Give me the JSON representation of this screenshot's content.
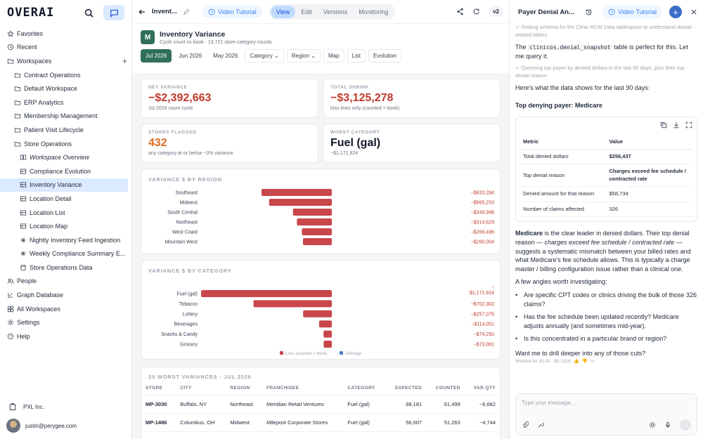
{
  "sidebar": {
    "logo": "OVERAI",
    "items": [
      {
        "label": "Favorites",
        "icon": "star-icon"
      },
      {
        "label": "Recent",
        "icon": "clock-icon"
      },
      {
        "label": "Workspaces",
        "icon": "folder-icon"
      },
      {
        "label": "Contract Operations",
        "icon": "folder-icon"
      },
      {
        "label": "Default Workspace",
        "icon": "folder-icon"
      },
      {
        "label": "ERP Analytics",
        "icon": "folder-icon"
      },
      {
        "label": "Membership Management",
        "icon": "folder-icon"
      },
      {
        "label": "Patient Visit Lifecycle",
        "icon": "folder-icon"
      },
      {
        "label": "Store Operations",
        "icon": "folder-icon"
      },
      {
        "label": "Workspace Overview",
        "icon": "book-icon"
      },
      {
        "label": "Compliance Evolution",
        "icon": "table-icon"
      },
      {
        "label": "Inventory Variance",
        "icon": "table-icon"
      },
      {
        "label": "Location Detail",
        "icon": "table-icon"
      },
      {
        "label": "Location List",
        "icon": "table-icon"
      },
      {
        "label": "Location Map",
        "icon": "table-icon"
      },
      {
        "label": "Nightly Inventory Feed Ingestion",
        "icon": "workflow-icon"
      },
      {
        "label": "Weekly Compliance Summary E...",
        "icon": "workflow-icon"
      },
      {
        "label": "Store Operations Data",
        "icon": "database-icon"
      },
      {
        "label": "People",
        "icon": "people-icon"
      },
      {
        "label": "Graph Database",
        "icon": "graph-icon"
      },
      {
        "label": "All Workspaces",
        "icon": "grid-icon"
      },
      {
        "label": "Settings",
        "icon": "gear-icon"
      },
      {
        "label": "Help",
        "icon": "help-icon"
      }
    ],
    "org": "PXL Inc.",
    "user": "justin@perygee.com"
  },
  "main": {
    "title": "Invent...",
    "video_tutorial": "Video Tutorial",
    "tabs": [
      "View",
      "Edit",
      "Versions",
      "Monitoring"
    ],
    "version": "v2",
    "report": {
      "badge": "M",
      "title": "Inventory Variance",
      "subtitle": "Cycle count vs book · 13,721 store-category counts"
    },
    "filters": {
      "months": [
        "Jul 2026",
        "Jun 2026",
        "May 2026"
      ],
      "category": "Category",
      "region": "Region",
      "views": [
        "Map",
        "List",
        "Evolution"
      ]
    },
    "kpis": [
      {
        "label": "NET VARIANCE",
        "value": "−$2,392,663",
        "sub": "Jul 2026 count cycle",
        "color": "#c0392b"
      },
      {
        "label": "TOTAL SHRINK",
        "value": "−$3,125,278",
        "sub": "loss lines only (counted < book)",
        "color": "#c0392b"
      },
      {
        "label": "STORES FLAGGED",
        "value": "432",
        "sub": "any category at or below −3% variance",
        "color": "#dd6b20"
      },
      {
        "label": "WORST CATEGORY",
        "value": "Fuel (gal)",
        "sub": "−$1,171,924",
        "color": "#111827"
      }
    ],
    "region_title": "VARIANCE $ BY REGION",
    "category_title": "VARIANCE $ BY CATEGORY",
    "legend": {
      "loss": "Loss (counted < book)",
      "overage": "Overage"
    },
    "worst": {
      "title": "20 WORST VARIANCES · JUL 2026",
      "headers": [
        "STORE",
        "CITY",
        "REGION",
        "FRANCHISEE",
        "CATEGORY",
        "EXPECTED",
        "COUNTED",
        "VAR QTY"
      ],
      "rows": [
        [
          "MP-3030",
          "Buffalo, NY",
          "Northeast",
          "Meridian Retail Ventures",
          "Fuel (gal)",
          "68,181",
          "61,499",
          "−6,682"
        ],
        [
          "MP-1486",
          "Columbus, OH",
          "Midwest",
          "Milepost Corporate Stores",
          "Fuel (gal)",
          "56,007",
          "51,263",
          "−4,744"
        ]
      ]
    }
  },
  "chart_data": [
    {
      "type": "bar",
      "orientation": "horizontal",
      "title": "VARIANCE $ BY REGION",
      "categories": [
        "Southeast",
        "Midwest",
        "South Central",
        "Northeast",
        "West Coast",
        "Mountain West"
      ],
      "values": [
        -633284,
        -565253,
        -349998,
        -314629,
        -269496,
        -260004
      ],
      "labels": [
        "−$633,284",
        "−$565,253",
        "−$349,998",
        "−$314,629",
        "−$269,496",
        "−$260,004"
      ],
      "colors": {
        "loss": "#c9464a",
        "overage": "#4a7fc1"
      }
    },
    {
      "type": "bar",
      "orientation": "horizontal",
      "title": "VARIANCE $ BY CATEGORY",
      "categories": [
        "Fuel (gal)",
        "Tobacco",
        "Lottery",
        "Beverages",
        "Snacks & Candy",
        "Grocery"
      ],
      "values": [
        -1171924,
        -702302,
        -257075,
        -114051,
        -74250,
        -73061
      ],
      "labels": [
        "−$1,171,924",
        "−$702,302",
        "−$257,075",
        "−$114,051",
        "−$74,250",
        "−$73,061"
      ],
      "legend": [
        "Loss (counted < book)",
        "Overage"
      ],
      "colors": {
        "loss": "#c9464a",
        "overage": "#4a7fc1"
      }
    }
  ],
  "chat": {
    "title": "Payer Denial An...",
    "video_tutorial": "Video Tutorial",
    "step1": "✓ Getting schema for the Clinic RCM Data tablespace to understand denial-related tables",
    "msg1_pre": "The",
    "msg1_code": "clinicos.denial_snapshot",
    "msg1_post": "table is perfect for this. Let me query it.",
    "step2": "✓ Querying top payer by denied dollars in the last 90 days, plus their top denial reason",
    "msg2": "Here's what the data shows for the last 90 days:",
    "heading": "Top denying payer: Medicare",
    "table": {
      "headers": [
        "Metric",
        "Value"
      ],
      "rows": [
        [
          "Total denied dollars",
          "$256,437"
        ],
        [
          "Top denial reason",
          "Charges exceed fee schedule / contracted rate"
        ],
        [
          "Denied amount for that reason",
          "$58,734"
        ],
        [
          "Number of claims affected",
          "326"
        ]
      ]
    },
    "analysis_bold": "Medicare",
    "analysis_a": " is the clear leader in denied dollars. Their top denial reason — ",
    "analysis_italic": "charges exceed fee schedule / contracted rate",
    "analysis_b": " — suggests a systematic mismatch between your billed rates and what Medicare's fee schedule allows. This is typically a charge master / billing configuration issue rather than a clinical one.",
    "angles": "A few angles worth investigating:",
    "bullets": [
      "Are specific CPT codes or clinics driving the bulk of those 326 claims?",
      "Has the fee schedule been updated recently? Medicare adjusts annually (and sometimes mid-year).",
      "Is this concentrated in a particular brand or region?"
    ],
    "closing": "Want me to drill deeper into any of those cuts?",
    "meta": "Worked for 25.0s · $0.1318",
    "input_placeholder": "Type your message..."
  }
}
